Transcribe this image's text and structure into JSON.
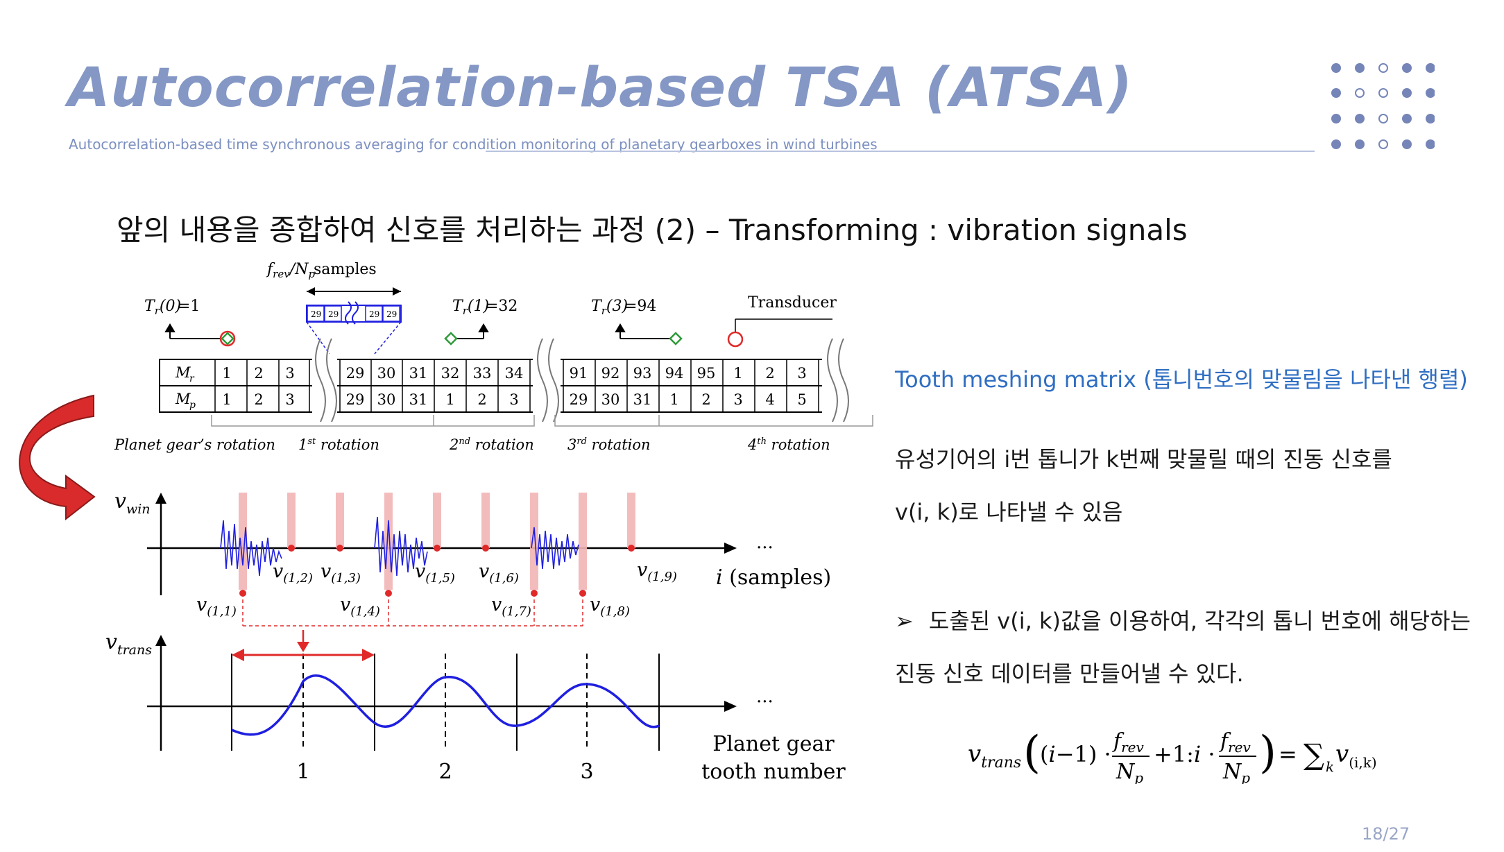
{
  "slide": {
    "title": "Autocorrelation-based TSA (ATSA)",
    "subtitle": "Autocorrelation-based time synchronous averaging for condition monitoring of planetary gearboxes in wind turbines",
    "heading": "앞의 내용을 종합하여 신호를 처리하는 과정 (2) – Transforming : vibration signals",
    "page_number": "18/27"
  },
  "right_text": {
    "matrix_title": "Tooth meshing matrix (톱니번호의 맞물림을 나타낸 행렬)",
    "para1": "유성기어의 i번 톱니가 k번째 맞물릴 때의 진동 신호를",
    "para2": "v(i, k)로 나타낼 수 있음",
    "bullet_marker": "➢",
    "bullet": "도출된 v(i, k)값을 이용하여, 각각의 톱니 번호에 해당하는",
    "bullet_cont": "진동 신호 데이터를 만들어낼 수 있다."
  },
  "formula": {
    "lhs_sub": "trans",
    "rhs_sub": "(i,k)"
  },
  "figure": {
    "samples_label": "samples",
    "tr0": "=1",
    "tr1": "=32",
    "tr3": "=94",
    "transducer": "Transducer",
    "mini_cells": [
      "29",
      "29",
      "29",
      "29"
    ],
    "row_mr": "M",
    "row_mp": "M",
    "mr_values": [
      "1",
      "2",
      "3",
      "29",
      "30",
      "31",
      "32",
      "33",
      "34",
      "91",
      "92",
      "93",
      "94",
      "95",
      "1",
      "2",
      "3"
    ],
    "mp_values": [
      "1",
      "2",
      "3",
      "29",
      "30",
      "31",
      "1",
      "2",
      "3",
      "29",
      "30",
      "31",
      "1",
      "2",
      "3",
      "4",
      "5"
    ],
    "rotation_labels": {
      "planet": "Planet gear’s rotation",
      "r1": "1",
      "r1_sup": "st",
      "r2": "2",
      "r2_sup": "nd",
      "r3": "3",
      "r3_sup": "rd",
      "r4": "4",
      "r4_sup": "th",
      "rotation_word": " rotation"
    },
    "vwin_sub": "win",
    "vtrans_sub": "trans",
    "v_labels": [
      "(1,1)",
      "(1,2)",
      "(1,3)",
      "(1,4)",
      "(1,5)",
      "(1,6)",
      "(1,7)",
      "(1,8)",
      "(1,9)"
    ],
    "samples_axis": "(samples)",
    "ellipsis": "...",
    "tooth_axis_line1": "Planet gear",
    "tooth_axis_line2": "tooth number",
    "tooth_numbers": [
      "1",
      "2",
      "3"
    ]
  },
  "colors": {
    "title": "#8497c5",
    "accent_blue": "#2f6ec2",
    "signal_blue": "#1f1fe0",
    "marker_red": "#e02a2a",
    "highlight_pink": "#f2b5b5",
    "arrow_red": "#d92b2b"
  }
}
